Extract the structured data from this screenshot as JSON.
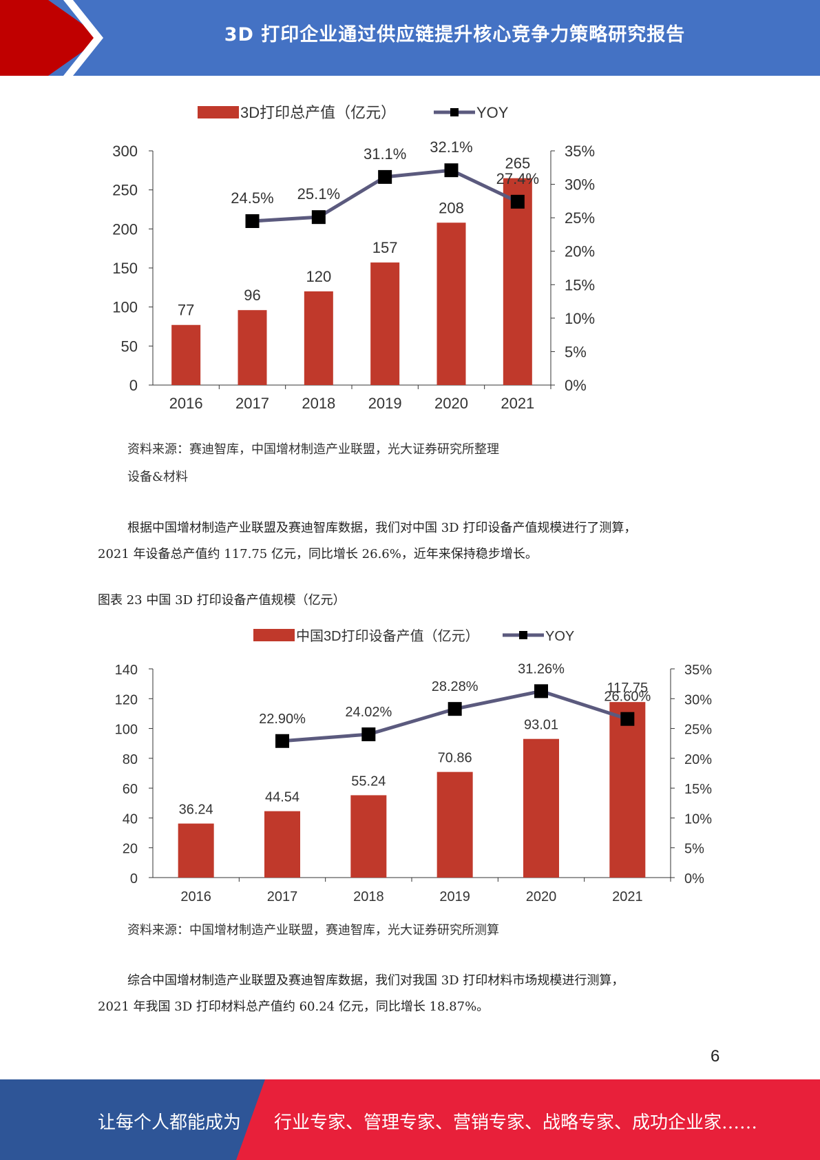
{
  "header": {
    "title": "3D 打印企业通过供应链提升核心竞争力策略研究报告",
    "colors": {
      "banner": "#4472c4",
      "accent": "#c00000"
    }
  },
  "charts": [
    {
      "chart_data": {
        "type": "bar+line",
        "categories": [
          "2016",
          "2017",
          "2018",
          "2019",
          "2020",
          "2021"
        ],
        "series": [
          {
            "name": "3D打印总产值（亿元）",
            "type": "bar",
            "axis": "left",
            "values": [
              77,
              96,
              120,
              157,
              208,
              265
            ],
            "labels": [
              "77",
              "96",
              "120",
              "157",
              "208",
              "265"
            ]
          },
          {
            "name": "YOY",
            "type": "line",
            "axis": "right",
            "values": [
              null,
              24.5,
              25.1,
              31.1,
              32.1,
              27.4
            ],
            "labels": [
              "",
              "24.5%",
              "25.1%",
              "31.1%",
              "32.1%",
              "27.4%"
            ]
          }
        ],
        "ylim": [
          0,
          300
        ],
        "yticks": [
          "0",
          "50",
          "100",
          "150",
          "200",
          "250",
          "300"
        ],
        "y2lim": [
          0,
          35
        ],
        "y2ticks": [
          "0%",
          "5%",
          "10%",
          "15%",
          "20%",
          "25%",
          "30%",
          "35%"
        ],
        "legend": "top",
        "grid": false,
        "colors": {
          "bar": "#c0392b",
          "line": "#5b5a7e",
          "marker": "#000000"
        }
      }
    },
    {
      "chart_data": {
        "type": "bar+line",
        "categories": [
          "2016",
          "2017",
          "2018",
          "2019",
          "2020",
          "2021"
        ],
        "series": [
          {
            "name": "中国3D打印设备产值（亿元）",
            "type": "bar",
            "axis": "left",
            "values": [
              36.24,
              44.54,
              55.24,
              70.86,
              93.01,
              117.75
            ],
            "labels": [
              "36.24",
              "44.54",
              "55.24",
              "70.86",
              "93.01",
              "117.75"
            ]
          },
          {
            "name": "YOY",
            "type": "line",
            "axis": "right",
            "values": [
              null,
              22.9,
              24.02,
              28.28,
              31.26,
              26.6
            ],
            "labels": [
              "",
              "22.90%",
              "24.02%",
              "28.28%",
              "31.26%",
              "26.60%"
            ]
          }
        ],
        "ylim": [
          0,
          140
        ],
        "yticks": [
          "0",
          "20",
          "40",
          "60",
          "80",
          "100",
          "120",
          "140"
        ],
        "y2lim": [
          0,
          35
        ],
        "y2ticks": [
          "0%",
          "5%",
          "10%",
          "15%",
          "20%",
          "25%",
          "30%",
          "35%"
        ],
        "legend": "top",
        "grid": false,
        "colors": {
          "bar": "#c0392b",
          "line": "#5b5a7e",
          "marker": "#000000"
        }
      }
    }
  ],
  "source1": "资料来源：赛迪智库，中国增材制造产业联盟，光大证券研究所整理",
  "section_heading": "设备&材料",
  "para1_line1": "根据中国增材制造产业联盟及赛迪智库数据，我们对中国 3D 打印设备产值规模进行了测算，",
  "para1_line2": "2021 年设备总产值约 117.75 亿元，同比增长 26.6%，近年来保持稳步增长。",
  "figure_caption": "图表  23  中国 3D 打印设备产值规模（亿元）",
  "source2": "资料来源：中国增材制造产业联盟，赛迪智库，光大证券研究所测算",
  "para2_line1": "综合中国增材制造产业联盟及赛迪智库数据，我们对我国 3D 打印材料市场规模进行测算，",
  "para2_line2": "2021 年我国 3D 打印材料总产值约 60.24 亿元，同比增长 18.87%。",
  "page_number": "6",
  "footer": {
    "left": "让每个人都能成为",
    "right": "行业专家、管理专家、营销专家、战略专家、成功企业家……",
    "colors": {
      "left": "#2e5597",
      "right": "#e8203a"
    }
  }
}
